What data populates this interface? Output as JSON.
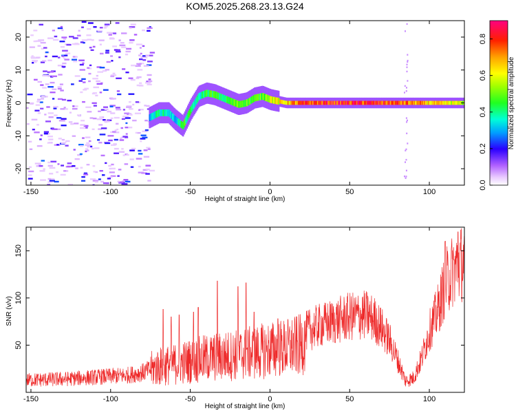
{
  "title": "KOM5.2025.268.23.13.G24",
  "chart_data": [
    {
      "type": "heatmap",
      "xlabel": "Height of straight line (km)",
      "ylabel": "Frequency (Hz)",
      "xlim": [
        -153,
        122
      ],
      "ylim": [
        -25,
        25
      ],
      "xticks": [
        -150,
        -100,
        -50,
        0,
        50,
        100
      ],
      "yticks": [
        -20,
        -10,
        0,
        10,
        20
      ],
      "colorbar": {
        "label": "Normalized spectral amplitude",
        "range": [
          0,
          0.9
        ],
        "ticks": [
          0,
          0.2,
          0.4,
          0.6,
          0.8
        ]
      },
      "ridge": {
        "x": [
          -76,
          -70,
          -64,
          -60,
          -55,
          -50,
          -45,
          -40,
          -35,
          -30,
          -25,
          -20,
          -15,
          -10,
          -5,
          0,
          5,
          10,
          20,
          40,
          60,
          80,
          100,
          122
        ],
        "freq": [
          -4.5,
          -3,
          -3,
          -5,
          -7,
          -2,
          2,
          3,
          2.5,
          1.5,
          0.5,
          -0.5,
          0,
          1.5,
          2,
          1,
          0.5,
          0,
          0,
          0,
          0,
          0,
          0,
          0
        ],
        "amplitude": [
          0.3,
          0.4,
          0.35,
          0.3,
          0.45,
          0.4,
          0.35,
          0.45,
          0.45,
          0.4,
          0.45,
          0.5,
          0.5,
          0.45,
          0.5,
          0.6,
          0.6,
          0.65,
          0.75,
          0.8,
          0.8,
          0.75,
          0.65,
          0.55
        ]
      }
    },
    {
      "type": "line",
      "xlabel": "Height of straight line (km)",
      "ylabel": "SNR (v/v)",
      "xlim": [
        -153,
        122
      ],
      "ylim": [
        0,
        175
      ],
      "xticks": [
        -150,
        -100,
        -50,
        0,
        50,
        100
      ],
      "yticks": [
        50,
        100,
        150
      ],
      "series": [
        {
          "name": "SNR",
          "color": "#ee2a2a",
          "x": [
            -153,
            -130,
            -110,
            -90,
            -80,
            -70,
            -60,
            -50,
            -40,
            -30,
            -20,
            -10,
            0,
            10,
            20,
            23,
            30,
            40,
            50,
            60,
            65,
            70,
            75,
            80,
            85,
            90,
            95,
            100,
            105,
            110,
            115,
            122
          ],
          "y_mid": [
            13,
            14,
            16,
            18,
            21,
            27,
            30,
            33,
            36,
            38,
            40,
            42,
            45,
            47,
            50,
            65,
            70,
            75,
            80,
            82,
            78,
            68,
            55,
            35,
            12,
            15,
            35,
            65,
            85,
            115,
            130,
            140
          ]
        }
      ],
      "spikes": [
        {
          "x": -67,
          "y": 88
        },
        {
          "x": -62,
          "y": 80
        },
        {
          "x": -57,
          "y": 82
        },
        {
          "x": -48,
          "y": 85
        },
        {
          "x": -45,
          "y": 90
        },
        {
          "x": -33,
          "y": 118
        },
        {
          "x": -20,
          "y": 112
        },
        {
          "x": -15,
          "y": 116
        },
        {
          "x": -10,
          "y": 85
        },
        {
          "x": 5,
          "y": 78
        },
        {
          "x": 110,
          "y": 160
        },
        {
          "x": 118,
          "y": 170
        }
      ]
    }
  ]
}
